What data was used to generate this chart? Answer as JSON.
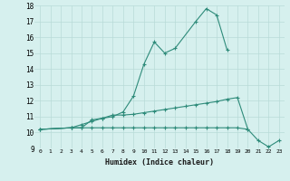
{
  "xlabel": "Humidex (Indice chaleur)",
  "x": [
    0,
    1,
    2,
    3,
    4,
    5,
    6,
    7,
    8,
    9,
    10,
    11,
    12,
    13,
    14,
    15,
    16,
    17,
    18,
    19,
    20,
    21,
    22,
    23
  ],
  "line1": [
    10.2,
    null,
    null,
    10.3,
    10.3,
    10.8,
    10.9,
    11.0,
    11.3,
    12.3,
    14.3,
    15.7,
    15.0,
    15.3,
    null,
    17.0,
    17.8,
    17.4,
    15.2,
    null,
    null,
    null,
    null,
    null
  ],
  "line2": [
    10.2,
    null,
    null,
    10.3,
    10.5,
    10.7,
    10.9,
    11.1,
    11.1,
    11.15,
    11.25,
    11.35,
    11.45,
    11.55,
    11.65,
    11.75,
    11.85,
    11.95,
    12.1,
    12.2,
    10.2,
    null,
    null,
    null
  ],
  "line3": [
    10.2,
    null,
    null,
    10.3,
    10.3,
    10.3,
    10.3,
    10.3,
    10.3,
    10.3,
    10.3,
    10.3,
    10.3,
    10.3,
    10.3,
    10.3,
    10.3,
    10.3,
    10.3,
    10.3,
    10.2,
    9.5,
    9.1,
    9.5
  ],
  "ylim": [
    9,
    18
  ],
  "xlim": [
    -0.5,
    23.5
  ],
  "yticks": [
    9,
    10,
    11,
    12,
    13,
    14,
    15,
    16,
    17,
    18
  ],
  "xticks": [
    0,
    1,
    2,
    3,
    4,
    5,
    6,
    7,
    8,
    9,
    10,
    11,
    12,
    13,
    14,
    15,
    16,
    17,
    18,
    19,
    20,
    21,
    22,
    23
  ],
  "line_color": "#2e8b7a",
  "bg_color": "#d6f0ee",
  "grid_color": "#b8dbd8"
}
